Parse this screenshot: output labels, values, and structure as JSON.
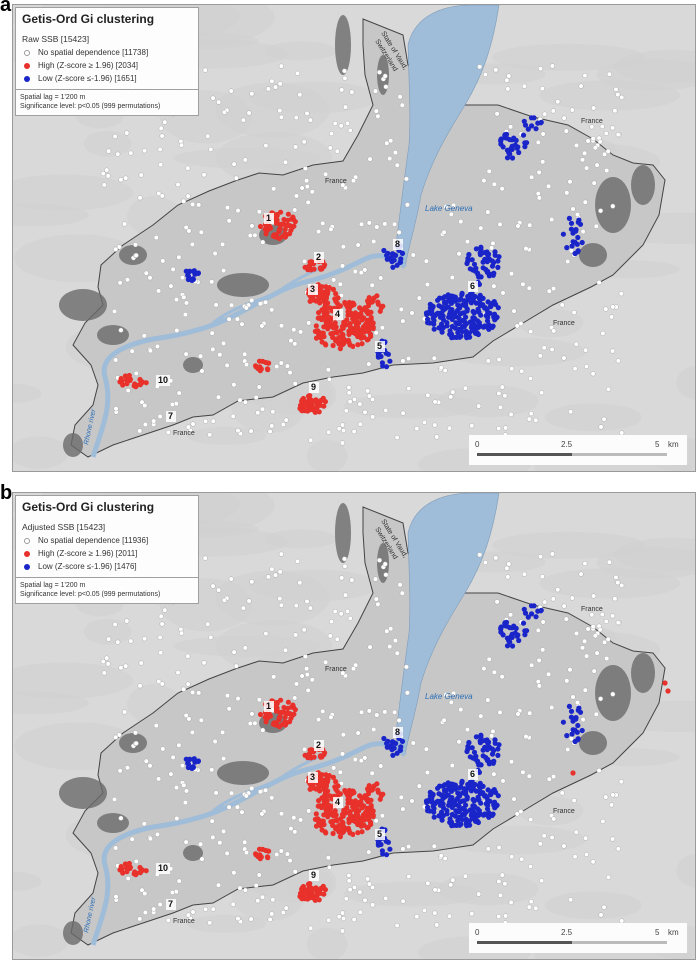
{
  "panels": [
    {
      "letter": "a",
      "title": "Getis-Ord Gi clustering",
      "subtitle": "Raw SSB [15423]",
      "legend": {
        "none": "No spatial dependence [11738]",
        "high": "High (Z-score ≥ 1.96) [2034]",
        "low": "Low (Z-score ≤-1.96) [1651]"
      },
      "notes": [
        "Spatial lag = 1'200 m",
        "Significance level: p<0.05 (999 permutations)"
      ],
      "extra_high_points": false
    },
    {
      "letter": "b",
      "title": "Getis-Ord Gi clustering",
      "subtitle": "Adjusted SSB [15423]",
      "legend": {
        "none": "No spatial dependence [11936]",
        "high": "High (Z-score ≥ 1.96) [2011]",
        "low": "Low (Z-score ≤-1.96) [1476]"
      },
      "notes": [
        "Spatial lag = 1'200 m",
        "Significance level: p<0.05 (999 permutations)"
      ],
      "extra_high_points": true
    }
  ],
  "map_labels": {
    "lake": "Lake Geneva",
    "river": "Rhone river",
    "vaud": [
      "State of Vaud,",
      "Switzerland"
    ],
    "france": "France",
    "clusters": [
      "1",
      "2",
      "3",
      "4",
      "5",
      "6",
      "7",
      "8",
      "9",
      "10"
    ]
  },
  "scale": {
    "ticks": [
      "0",
      "2.5",
      "5",
      "km"
    ]
  },
  "colors": {
    "high": "#e8312a",
    "low": "#1a25c9",
    "none": "#ffffff",
    "lake": "#9fbcd8",
    "canton": "#c7c7c7",
    "background": "#d9d9d9",
    "forest": "#6a6a6a"
  }
}
